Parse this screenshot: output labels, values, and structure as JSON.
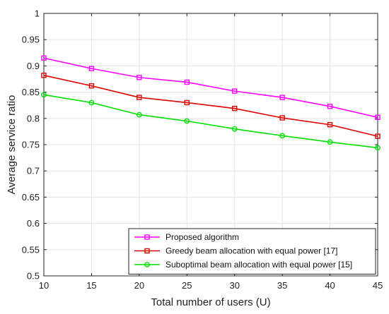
{
  "chart_data": {
    "type": "line",
    "title": "",
    "xlabel": "Total number of users (U)",
    "ylabel": "Average service ratio",
    "x": [
      10,
      15,
      20,
      25,
      30,
      35,
      40,
      45
    ],
    "xlim": [
      10,
      45
    ],
    "ylim": [
      0.5,
      1.0
    ],
    "xticks": [
      "10",
      "15",
      "20",
      "25",
      "30",
      "35",
      "40",
      "45"
    ],
    "yticks": [
      "0.5",
      "0.55",
      "0.6",
      "0.65",
      "0.7",
      "0.75",
      "0.8",
      "0.85",
      "0.9",
      "0.95",
      "1"
    ],
    "grid": true,
    "legend_position": "bottom-right",
    "series": [
      {
        "name": "Proposed algorithm",
        "color": "#ff00ff",
        "marker": "square",
        "values": [
          0.915,
          0.895,
          0.878,
          0.869,
          0.852,
          0.84,
          0.823,
          0.802
        ]
      },
      {
        "name": "Greedy beam allocation with equal power [17]",
        "color": "#e00000",
        "marker": "square",
        "values": [
          0.882,
          0.862,
          0.84,
          0.83,
          0.819,
          0.801,
          0.788,
          0.766
        ]
      },
      {
        "name": "Suboptimal beam allocation with equal power [15]",
        "color": "#00e000",
        "marker": "circle",
        "values": [
          0.845,
          0.83,
          0.807,
          0.795,
          0.78,
          0.767,
          0.755,
          0.744
        ]
      }
    ]
  }
}
